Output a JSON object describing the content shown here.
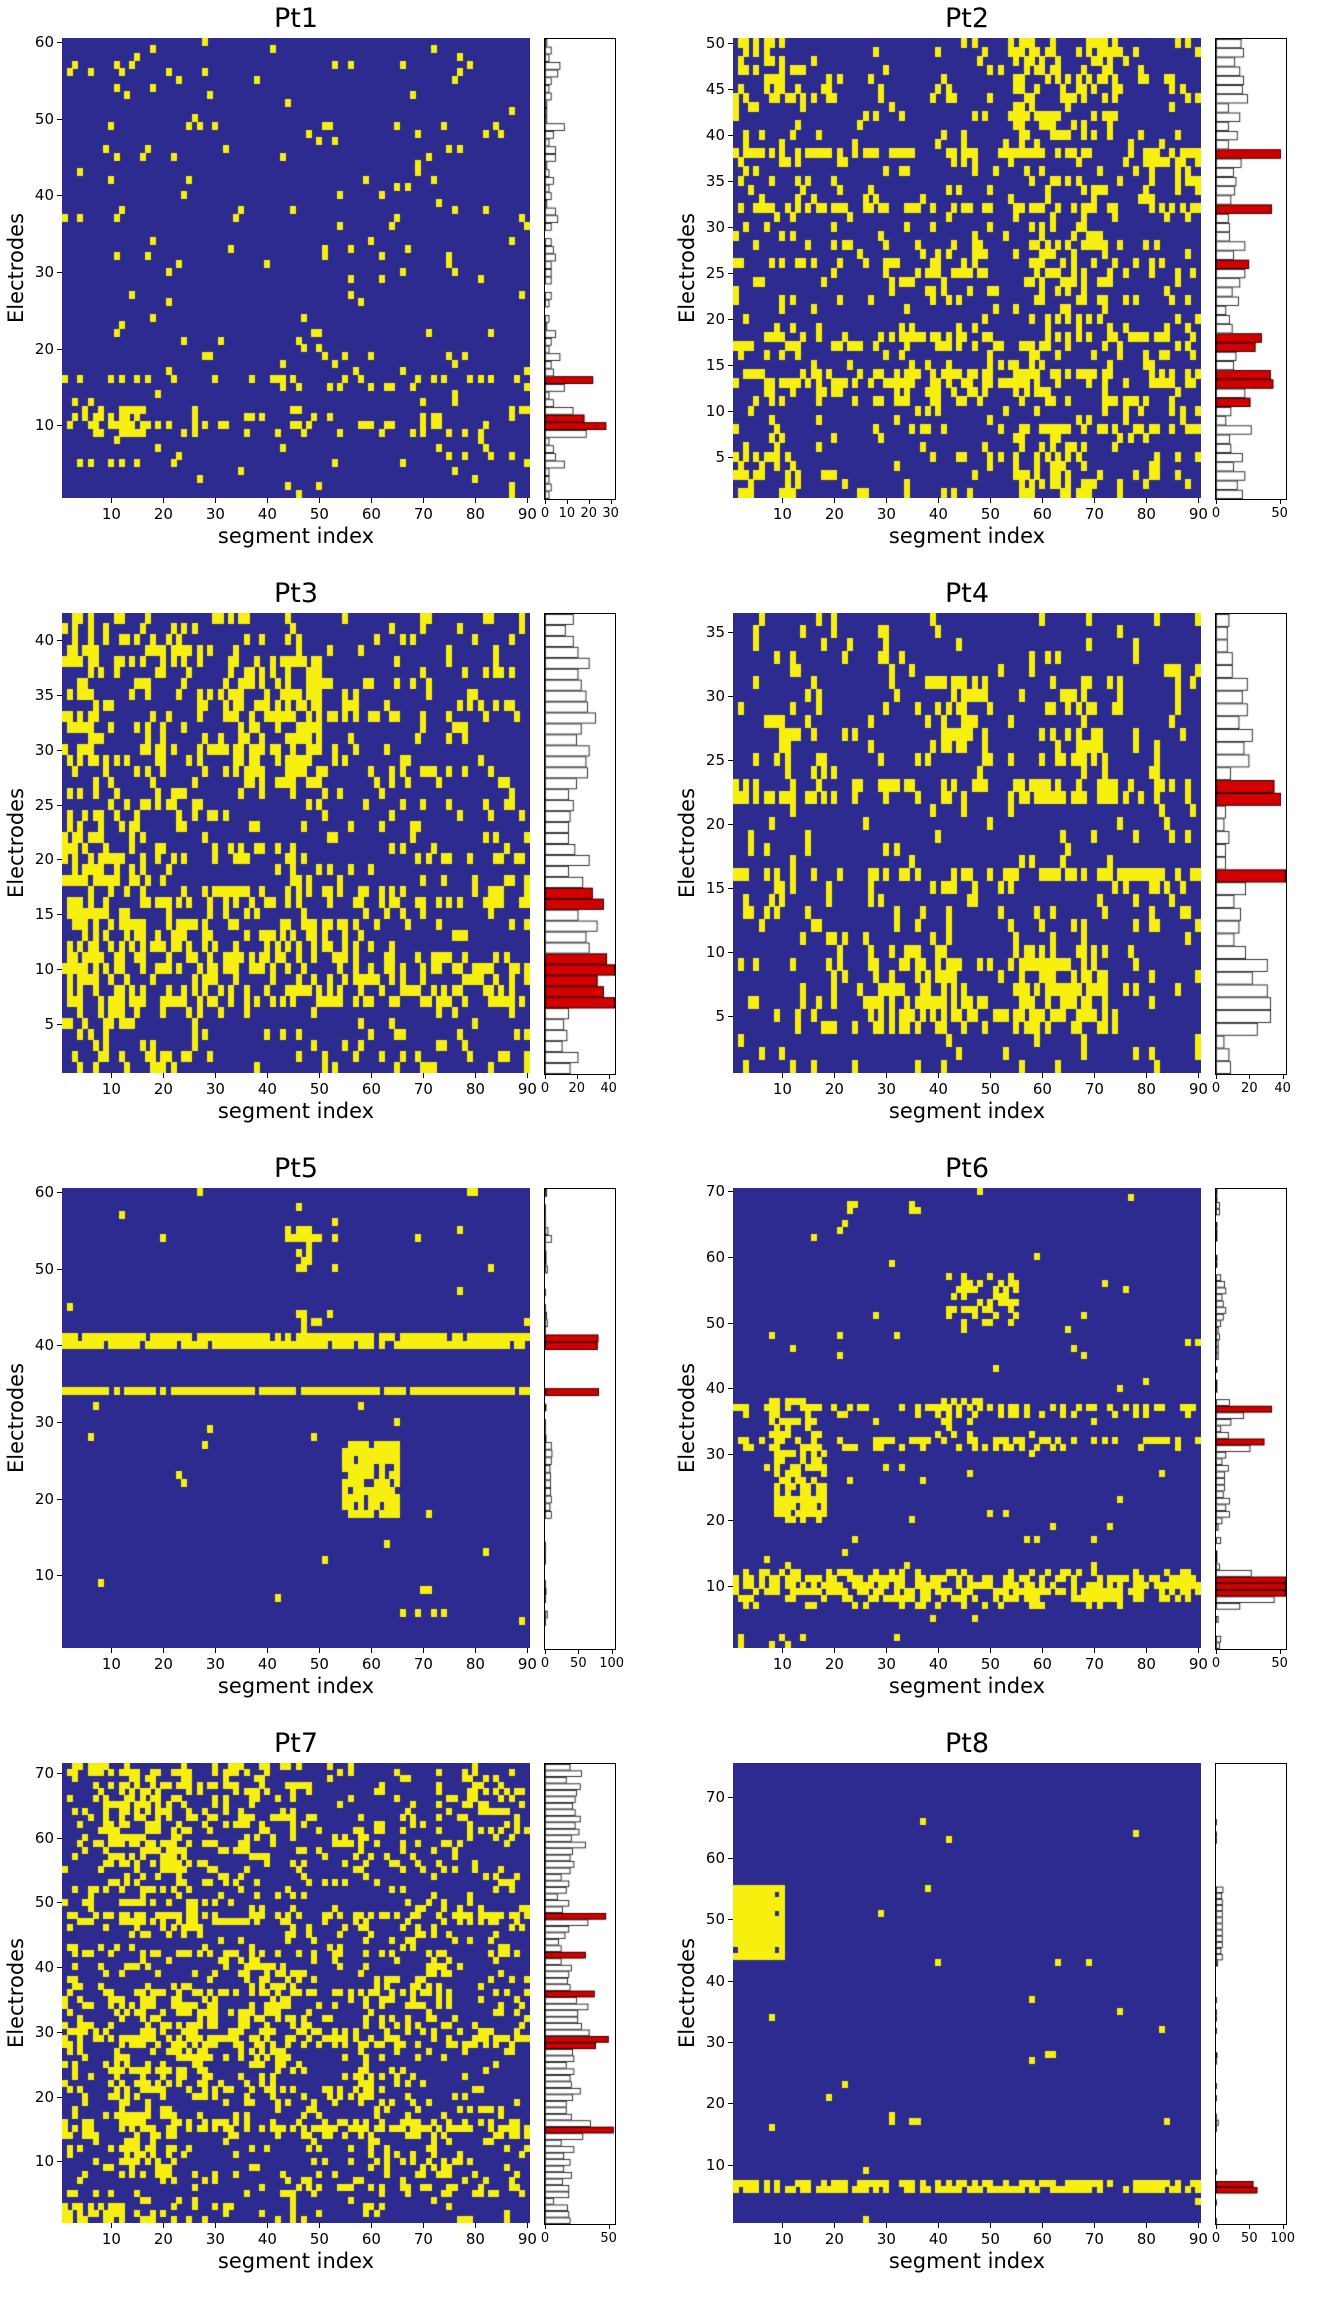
{
  "figure": {
    "colors": {
      "background": "#ffffff",
      "heatmap_off": "#2d2b8f",
      "heatmap_on": "#f7ef0e",
      "bar_fill": "#ffffff",
      "bar_stroke": "#000000",
      "bar_highlight": "#d40000",
      "axis": "#000000"
    }
  },
  "chart_data": [
    {
      "type": "heatmap",
      "title": "Pt1",
      "xlabel": "segment index",
      "ylabel": "Electrodes",
      "n_electrodes": 60,
      "n_segments": 90,
      "x_ticks": [
        10,
        20,
        30,
        40,
        50,
        60,
        70,
        80,
        90
      ],
      "y_ticks": [
        10,
        20,
        30,
        40,
        50,
        60
      ],
      "hist_ticks": [
        0,
        10,
        20,
        30
      ],
      "hist_axis_max": 32,
      "base_density": 0.035,
      "row_densities": {
        "9": 0.12,
        "10": 0.28,
        "11": 0.24,
        "15": 0.12,
        "16": 0.22
      },
      "blocks": [
        [
          9,
          12,
          12,
          16,
          0.85
        ],
        [
          19,
          21,
          28,
          52,
          0.12
        ],
        [
          56,
          58,
          10,
          30,
          0.1
        ]
      ],
      "highlight_rows": [
        10,
        11,
        16
      ],
      "seed": 11
    },
    {
      "type": "heatmap",
      "title": "Pt2",
      "xlabel": "segment index",
      "ylabel": "Electrodes",
      "n_electrodes": 50,
      "n_segments": 90,
      "x_ticks": [
        10,
        20,
        30,
        40,
        50,
        60,
        70,
        80,
        90
      ],
      "y_ticks": [
        5,
        10,
        15,
        20,
        25,
        30,
        35,
        40,
        45,
        50
      ],
      "hist_ticks": [
        0,
        50
      ],
      "hist_axis_max": 55,
      "base_density": 0.1,
      "row_densities": {
        "8": 0.3,
        "11": 0.44,
        "13": 0.48,
        "14": 0.5,
        "17": 0.4,
        "18": 0.42,
        "26": 0.36,
        "32": 0.47,
        "38": 0.55,
        "44": 0.25
      },
      "blocks": [
        [
          40,
          50,
          55,
          75,
          0.4
        ],
        [
          20,
          30,
          58,
          72,
          0.45
        ],
        [
          1,
          8,
          55,
          70,
          0.42
        ],
        [
          44,
          50,
          1,
          10,
          0.4
        ],
        [
          12,
          18,
          40,
          60,
          0.35
        ],
        [
          30,
          36,
          60,
          75,
          0.3
        ],
        [
          22,
          28,
          38,
          50,
          0.3
        ],
        [
          1,
          6,
          1,
          12,
          0.25
        ],
        [
          33,
          39,
          78,
          90,
          0.35
        ]
      ],
      "highlight_rows": [
        11,
        13,
        14,
        17,
        18,
        26,
        32,
        38
      ],
      "seed": 22
    },
    {
      "type": "heatmap",
      "title": "Pt3",
      "xlabel": "segment index",
      "ylabel": "Electrodes",
      "n_electrodes": 42,
      "n_segments": 90,
      "x_ticks": [
        10,
        20,
        30,
        40,
        50,
        60,
        70,
        80,
        90
      ],
      "y_ticks": [
        5,
        10,
        15,
        20,
        25,
        30,
        35,
        40
      ],
      "hist_ticks": [
        0,
        20,
        40
      ],
      "hist_axis_max": 44,
      "base_density": 0.13,
      "row_densities": {
        "7": 0.38,
        "8": 0.42,
        "9": 0.42,
        "10": 0.45,
        "11": 0.4,
        "16": 0.36,
        "17": 0.38,
        "33": 0.3,
        "34": 0.3
      },
      "blocks": [
        [
          1,
          42,
          1,
          30,
          0.26
        ],
        [
          5,
          20,
          2,
          12,
          0.55
        ],
        [
          28,
          38,
          2,
          8,
          0.5
        ],
        [
          8,
          14,
          14,
          30,
          0.45
        ],
        [
          27,
          38,
          34,
          50,
          0.55
        ],
        [
          8,
          14,
          34,
          55,
          0.42
        ],
        [
          1,
          4,
          1,
          20,
          0.3
        ],
        [
          15,
          22,
          1,
          10,
          0.45
        ]
      ],
      "highlight_rows": [
        7,
        8,
        9,
        10,
        11,
        16,
        17
      ],
      "seed": 33
    },
    {
      "type": "heatmap",
      "title": "Pt4",
      "xlabel": "segment index",
      "ylabel": "Electrodes",
      "n_electrodes": 36,
      "n_segments": 90,
      "x_ticks": [
        10,
        20,
        30,
        40,
        50,
        60,
        70,
        80,
        90
      ],
      "y_ticks": [
        5,
        10,
        15,
        20,
        25,
        30,
        35
      ],
      "hist_ticks": [
        0,
        20,
        40
      ],
      "hist_axis_max": 42,
      "base_density": 0.085,
      "row_densities": {
        "13": 0.2,
        "15": 0.2,
        "16": 0.5,
        "22": 0.42,
        "23": 0.4
      },
      "blocks": [
        [
          4,
          10,
          28,
          46,
          0.5
        ],
        [
          4,
          10,
          55,
          72,
          0.55
        ],
        [
          25,
          31,
          38,
          50,
          0.42
        ],
        [
          25,
          31,
          62,
          75,
          0.35
        ],
        [
          12,
          14,
          8,
          20,
          0.3
        ],
        [
          32,
          36,
          1,
          20,
          0.15
        ],
        [
          25,
          30,
          8,
          18,
          0.2
        ],
        [
          4,
          9,
          12,
          22,
          0.25
        ]
      ],
      "highlight_rows": [
        16,
        22,
        23
      ],
      "seed": 44
    },
    {
      "type": "heatmap",
      "title": "Pt5",
      "xlabel": "segment index",
      "ylabel": "Electrodes",
      "n_electrodes": 60,
      "n_segments": 90,
      "x_ticks": [
        10,
        20,
        30,
        40,
        50,
        60,
        70,
        80,
        90
      ],
      "y_ticks": [
        10,
        20,
        30,
        40,
        50,
        60
      ],
      "hist_ticks": [
        0,
        50,
        100
      ],
      "hist_axis_max": 105,
      "base_density": 0.006,
      "row_densities": {
        "34": 0.92,
        "40": 0.9,
        "41": 0.85
      },
      "blocks": [
        [
          18,
          27,
          55,
          65,
          0.8
        ],
        [
          50,
          56,
          44,
          53,
          0.35
        ],
        [
          5,
          8,
          66,
          72,
          0.15
        ],
        [
          40,
          44,
          46,
          52,
          0.3
        ]
      ],
      "highlight_rows": [
        34,
        40,
        41
      ],
      "seed": 55
    },
    {
      "type": "heatmap",
      "title": "Pt6",
      "xlabel": "segment index",
      "ylabel": "Electrodes",
      "n_electrodes": 70,
      "n_segments": 90,
      "x_ticks": [
        10,
        20,
        30,
        40,
        50,
        60,
        70,
        80,
        90
      ],
      "y_ticks": [
        10,
        20,
        30,
        40,
        50,
        60,
        70
      ],
      "hist_ticks": [
        0,
        50
      ],
      "hist_axis_max": 55,
      "base_density": 0.012,
      "row_densities": {
        "7": 0.2,
        "8": 0.5,
        "9": 0.62,
        "10": 0.65,
        "11": 0.6,
        "12": 0.35,
        "31": 0.25,
        "32": 0.48,
        "36": 0.3,
        "37": 0.5
      },
      "blocks": [
        [
          20,
          30,
          9,
          18,
          0.6
        ],
        [
          30,
          38,
          8,
          18,
          0.45
        ],
        [
          50,
          57,
          42,
          55,
          0.35
        ],
        [
          63,
          68,
          18,
          36,
          0.06
        ],
        [
          33,
          38,
          40,
          48,
          0.3
        ]
      ],
      "highlight_rows": [
        9,
        10,
        11,
        32,
        37
      ],
      "seed": 66
    },
    {
      "type": "heatmap",
      "title": "Pt7",
      "xlabel": "segment index",
      "ylabel": "Electrodes",
      "n_electrodes": 71,
      "n_segments": 90,
      "x_ticks": [
        10,
        20,
        30,
        40,
        50,
        60,
        70,
        80,
        90
      ],
      "y_ticks": [
        10,
        20,
        30,
        40,
        50,
        60,
        70
      ],
      "hist_ticks": [
        0,
        50
      ],
      "hist_axis_max": 55,
      "base_density": 0.15,
      "row_densities": {
        "14": 0.35,
        "15": 0.5,
        "16": 0.45,
        "28": 0.45,
        "29": 0.5,
        "30": 0.45,
        "36": 0.42,
        "42": 0.38,
        "47": 0.3,
        "48": 0.55
      },
      "blocks": [
        [
          55,
          70,
          8,
          25,
          0.5
        ],
        [
          20,
          35,
          10,
          30,
          0.5
        ],
        [
          8,
          18,
          12,
          22,
          0.5
        ],
        [
          25,
          40,
          35,
          45,
          0.45
        ],
        [
          28,
          38,
          58,
          75,
          0.4
        ],
        [
          55,
          65,
          28,
          40,
          0.35
        ],
        [
          55,
          62,
          55,
          70,
          0.3
        ],
        [
          60,
          70,
          78,
          88,
          0.35
        ],
        [
          1,
          3,
          1,
          12,
          0.65
        ],
        [
          5,
          12,
          60,
          75,
          0.3
        ],
        [
          18,
          24,
          55,
          70,
          0.3
        ],
        [
          45,
          52,
          12,
          25,
          0.35
        ],
        [
          63,
          71,
          30,
          45,
          0.35
        ],
        [
          65,
          71,
          3,
          12,
          0.4
        ]
      ],
      "highlight_rows": [
        15,
        28,
        29,
        36,
        42,
        48
      ],
      "seed": 77
    },
    {
      "type": "heatmap",
      "title": "Pt8",
      "xlabel": "segment index",
      "ylabel": "Electrodes",
      "n_electrodes": 75,
      "n_segments": 90,
      "x_ticks": [
        10,
        20,
        30,
        40,
        50,
        60,
        70,
        80,
        90
      ],
      "y_ticks": [
        10,
        20,
        30,
        40,
        50,
        60,
        70
      ],
      "hist_ticks": [
        0,
        50,
        100
      ],
      "hist_axis_max": 105,
      "base_density": 0.004,
      "row_densities": {
        "6": 0.68,
        "7": 0.62
      },
      "blocks": [
        [
          44,
          55,
          1,
          10,
          0.97
        ],
        [
          16,
          18,
          30,
          36,
          0.12
        ]
      ],
      "highlight_rows": [
        6,
        7
      ],
      "seed": 88
    }
  ]
}
